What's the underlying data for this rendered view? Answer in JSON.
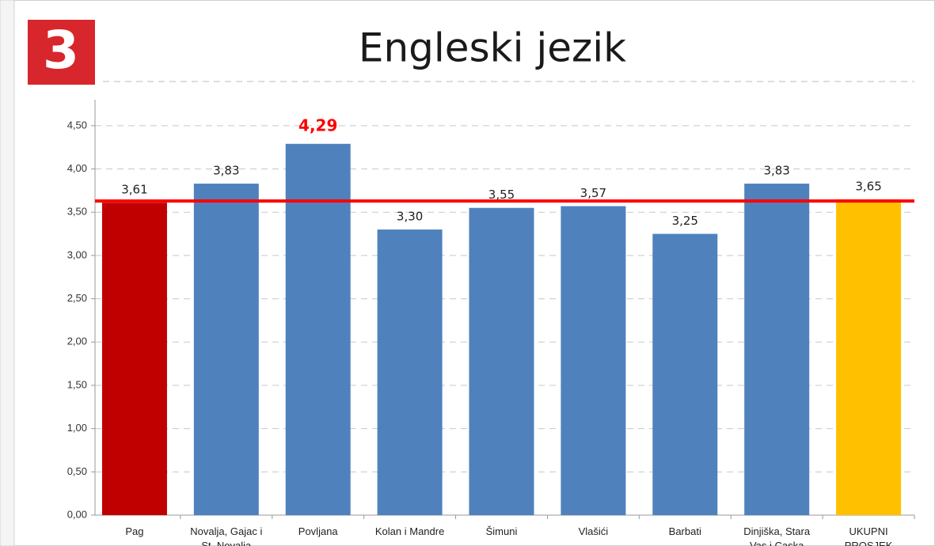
{
  "chart_data": {
    "type": "bar",
    "badge": "3",
    "title": "Engleski jezik",
    "categories": [
      "Pag",
      "Novalja, Gajac i St. Novalja",
      "Povljana",
      "Kolan i Mandre",
      "Šimuni",
      "Vlašići",
      "Barbati",
      "Dinjiška, Stara Vas i Caska",
      "UKUPNI PROSJEK"
    ],
    "values": [
      3.61,
      3.83,
      4.29,
      3.3,
      3.55,
      3.57,
      3.25,
      3.83,
      3.65
    ],
    "value_labels": [
      "3,61",
      "3,83",
      "4,29",
      "3,30",
      "3,55",
      "3,57",
      "3,25",
      "3,83",
      "3,65"
    ],
    "colors": [
      "#c00000",
      "#4f81bd",
      "#4f81bd",
      "#4f81bd",
      "#4f81bd",
      "#4f81bd",
      "#4f81bd",
      "#4f81bd",
      "#ffc000"
    ],
    "highlight": {
      "index": 2,
      "color": "#ff0000"
    },
    "reference_line": {
      "value": 3.63,
      "color": "#ff0000"
    },
    "ylim": [
      0,
      4.8
    ],
    "yticks": [
      {
        "value": 0,
        "label": "0,00"
      },
      {
        "value": 0.5,
        "label": "0,50"
      },
      {
        "value": 1,
        "label": "1,00"
      },
      {
        "value": 1.5,
        "label": "1,50"
      },
      {
        "value": 2,
        "label": "2,00"
      },
      {
        "value": 2.5,
        "label": "2,50"
      },
      {
        "value": 3,
        "label": "3,00"
      },
      {
        "value": 3.5,
        "label": "3,50"
      },
      {
        "value": 4,
        "label": "4,00"
      },
      {
        "value": 4.5,
        "label": "4,50"
      }
    ],
    "grid": true
  }
}
